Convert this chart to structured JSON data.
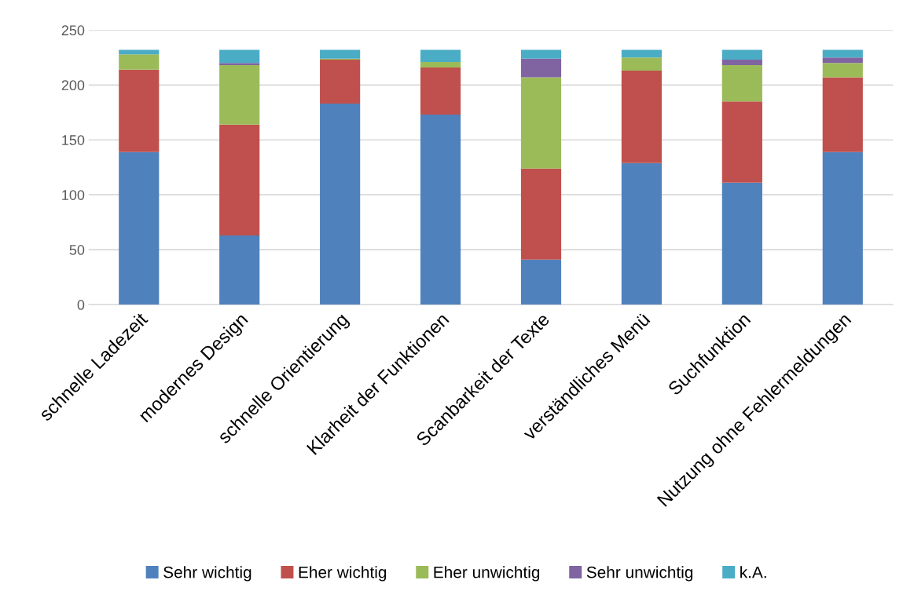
{
  "chart_data": {
    "type": "bar",
    "stacked": true,
    "categories": [
      "schnelle Ladezeit",
      "modernes Design",
      "schnelle Orientierung",
      "Klarheit der Funktionen",
      "Scanbarkeit der Texte",
      "verständliches Menü",
      "Suchfunktion",
      "Nutzung ohne Fehlermeldungen"
    ],
    "series": [
      {
        "name": "Sehr wichtig",
        "color": "#4f81bd",
        "values": [
          139,
          63,
          183,
          173,
          41,
          129,
          111,
          139
        ]
      },
      {
        "name": "Eher wichtig",
        "color": "#c0504d",
        "values": [
          75,
          101,
          40,
          43,
          83,
          84,
          74,
          68
        ]
      },
      {
        "name": "Eher unwichtig",
        "color": "#9bbb59",
        "values": [
          14,
          54,
          1,
          5,
          83,
          12,
          33,
          13
        ]
      },
      {
        "name": "Sehr unwichtig",
        "color": "#8064a2",
        "values": [
          0,
          2,
          0,
          0,
          17,
          0,
          5,
          5
        ]
      },
      {
        "name": "k.A.",
        "color": "#4bacc6",
        "values": [
          4,
          12,
          8,
          11,
          8,
          7,
          9,
          7
        ]
      }
    ],
    "ylim": [
      0,
      250
    ],
    "yticks": [
      0,
      50,
      100,
      150,
      200,
      250
    ],
    "grid": "y",
    "legend": "bottom"
  }
}
